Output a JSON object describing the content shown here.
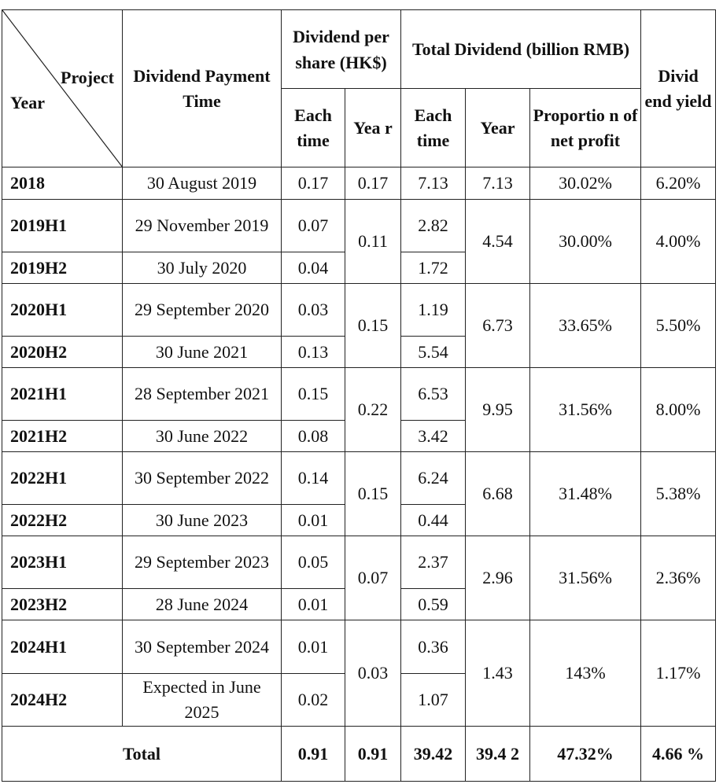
{
  "headers": {
    "project": "Project",
    "year": "Year",
    "payment_time": "Dividend Payment Time",
    "dps": "Dividend per share (HK$)",
    "total_div": "Total Dividend (billion RMB)",
    "each_time_1": "Each time",
    "year_1": "Yea r",
    "each_time_2": "Each time",
    "year_2": "Year",
    "proportion": "Proportio n of net profit",
    "yield": "Divid end yield"
  },
  "rows": [
    {
      "period": "2018",
      "time": "30 August 2019",
      "each": "0.17",
      "year": "0.17",
      "total_each": "7.13",
      "total_year": "7.13",
      "prop": "30.02%",
      "yield": "6.20%"
    },
    {
      "period": "2019H1",
      "time": "29 November 2019",
      "each": "0.07",
      "year": "0.11",
      "total_each": "2.82",
      "total_year": "4.54",
      "prop": "30.00%",
      "yield": "4.00%"
    },
    {
      "period": "2019H2",
      "time": "30 July 2020",
      "each": "0.04",
      "total_each": "1.72"
    },
    {
      "period": "2020H1",
      "time": "29 September 2020",
      "each": "0.03",
      "year": "0.15",
      "total_each": "1.19",
      "total_year": "6.73",
      "prop": "33.65%",
      "yield": "5.50%"
    },
    {
      "period": "2020H2",
      "time": "30 June 2021",
      "each": "0.13",
      "total_each": "5.54"
    },
    {
      "period": "2021H1",
      "time": "28 September 2021",
      "each": "0.15",
      "year": "0.22",
      "total_each": "6.53",
      "total_year": "9.95",
      "prop": "31.56%",
      "yield": "8.00%"
    },
    {
      "period": "2021H2",
      "time": "30 June 2022",
      "each": "0.08",
      "total_each": "3.42"
    },
    {
      "period": "2022H1",
      "time": "30 September 2022",
      "each": "0.14",
      "year": "0.15",
      "total_each": "6.24",
      "total_year": "6.68",
      "prop": "31.48%",
      "yield": "5.38%"
    },
    {
      "period": "2022H2",
      "time": "30 June 2023",
      "each": "0.01",
      "total_each": "0.44"
    },
    {
      "period": "2023H1",
      "time": "29 September 2023",
      "each": "0.05",
      "year": "0.07",
      "total_each": "2.37",
      "total_year": "2.96",
      "prop": "31.56%",
      "yield": "2.36%"
    },
    {
      "period": "2023H2",
      "time": "28 June 2024",
      "each": "0.01",
      "total_each": "0.59"
    },
    {
      "period": "2024H1",
      "time": "30 September 2024",
      "each": "0.01",
      "year": "0.03",
      "total_each": "0.36",
      "total_year": "1.43",
      "prop": "143%",
      "yield": "1.17%"
    },
    {
      "period": "2024H2",
      "time": "Expected in June 2025",
      "each": "0.02",
      "total_each": "1.07"
    }
  ],
  "total": {
    "label": "Total",
    "each": "0.91",
    "year": "0.91",
    "total_each": "39.42",
    "total_year": "39.4 2",
    "prop": "47.32%",
    "yield": "4.66 %"
  }
}
